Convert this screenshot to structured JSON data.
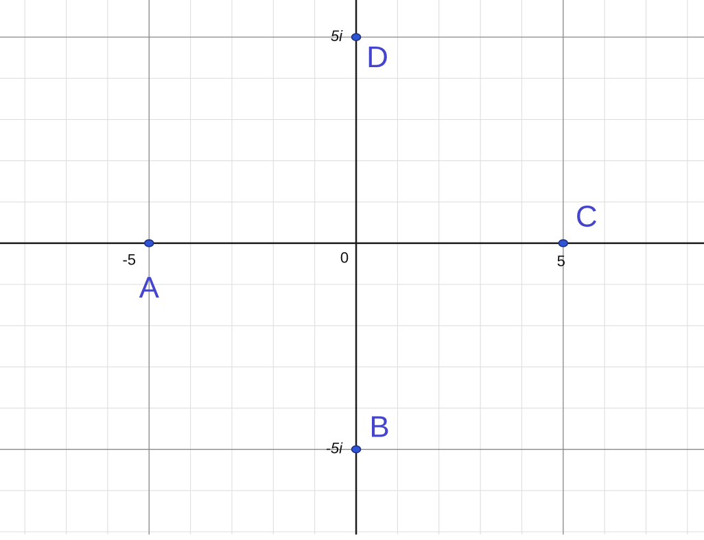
{
  "chart_data": {
    "type": "scatter",
    "x": [
      -5,
      0,
      5,
      0
    ],
    "values": [
      0,
      -5,
      0,
      5
    ],
    "point_labels": [
      "A",
      "B",
      "C",
      "D"
    ],
    "color": "#2f55d4",
    "label_color": "#4444cc",
    "xlim": [
      -8.6,
      8.4
    ],
    "ylim": [
      -7.2,
      5.9
    ],
    "xticks": [
      -5,
      0,
      5
    ],
    "yticks": [
      {
        "value": -5,
        "label": "-5i"
      },
      {
        "value": 5,
        "label": "5i"
      }
    ],
    "grid": true,
    "minor_grid_step": 1
  }
}
